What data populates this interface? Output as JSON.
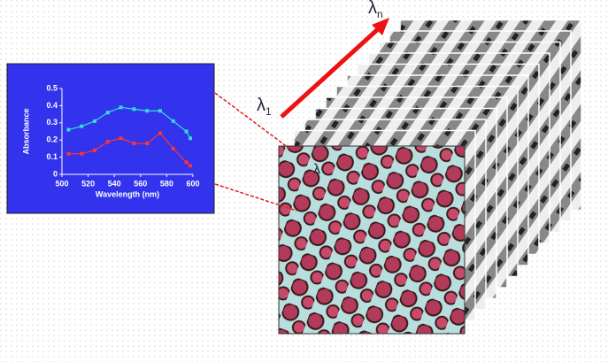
{
  "chart_data": {
    "type": "line",
    "x_label": "Wavelength (nm)",
    "y_label": "Absorbance",
    "x": [
      505,
      515,
      525,
      535,
      545,
      555,
      565,
      575,
      585,
      595,
      598
    ],
    "series": [
      {
        "color": "#33dddd",
        "values": [
          0.26,
          0.28,
          0.31,
          0.36,
          0.39,
          0.38,
          0.37,
          0.37,
          0.31,
          0.25,
          0.21
        ]
      },
      {
        "color": "#ff3333",
        "values": [
          0.12,
          0.12,
          0.14,
          0.19,
          0.21,
          0.18,
          0.18,
          0.24,
          0.15,
          0.07,
          0.05
        ]
      }
    ],
    "xlim": [
      500,
      600
    ],
    "xticks": [
      500,
      520,
      540,
      560,
      580,
      600
    ],
    "ylim": [
      0,
      0.5
    ],
    "yticks": [
      0,
      0.1,
      0.2,
      0.3,
      0.4,
      0.5
    ]
  },
  "lambda_1": {
    "symbol": "λ",
    "subscript": "1"
  },
  "lambda_n": {
    "symbol": "λ",
    "subscript": "n"
  },
  "lambda_i": {
    "symbol": "λ"
  }
}
